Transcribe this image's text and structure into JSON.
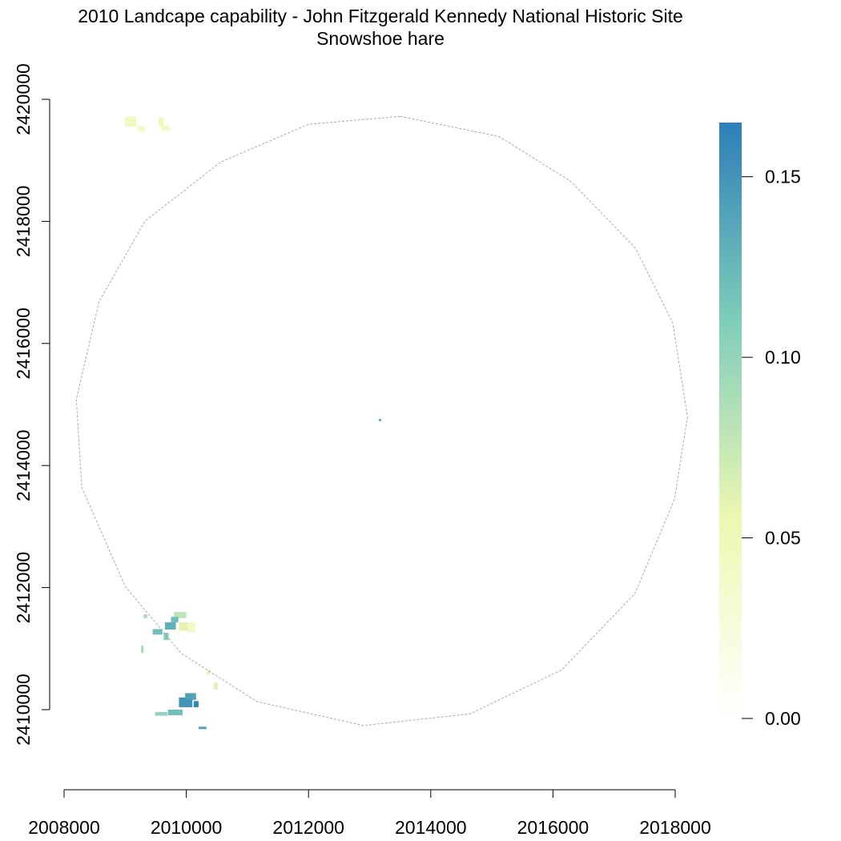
{
  "chart_data": {
    "type": "heatmap",
    "title": "2010 Landcape capability - John Fitzgerald Kennedy National Historic Site",
    "subtitle": "Snowshoe hare",
    "xlabel": "",
    "ylabel": "",
    "xlim": [
      2008000,
      2018000
    ],
    "ylim": [
      2410000,
      2420000
    ],
    "x_ticks": [
      2008000,
      2010000,
      2012000,
      2014000,
      2016000,
      2018000
    ],
    "x_tick_labels": [
      "2008000",
      "2010000",
      "2012000",
      "2014000",
      "2016000",
      "2018000"
    ],
    "y_ticks": [
      2410000,
      2412000,
      2414000,
      2416000,
      2418000,
      2420000
    ],
    "y_tick_labels": [
      "2410000",
      "2412000",
      "2414000",
      "2416000",
      "2418000",
      "2420000"
    ],
    "grid": false,
    "legend": {
      "position": "right",
      "range": [
        0,
        0.165
      ],
      "ticks": [
        0.0,
        0.05,
        0.1,
        0.15
      ],
      "tick_labels": [
        "0.00",
        "0.05",
        "0.10",
        "0.15"
      ],
      "colors": [
        "#ffffff",
        "#edf8b1",
        "#7fcdbb",
        "#2c7fb8"
      ]
    },
    "boundary_polygon": [
      [
        2013500,
        2419720
      ],
      [
        2015120,
        2419390
      ],
      [
        2016300,
        2418650
      ],
      [
        2017350,
        2417560
      ],
      [
        2017960,
        2416340
      ],
      [
        2018200,
        2414800
      ],
      [
        2017990,
        2413450
      ],
      [
        2017340,
        2411900
      ],
      [
        2016140,
        2410650
      ],
      [
        2014640,
        2409930
      ],
      [
        2012900,
        2409740
      ],
      [
        2011160,
        2410130
      ],
      [
        2009920,
        2410920
      ],
      [
        2009000,
        2412020
      ],
      [
        2008290,
        2413640
      ],
      [
        2008200,
        2415080
      ],
      [
        2008570,
        2416680
      ],
      [
        2009320,
        2418000
      ],
      [
        2010560,
        2418970
      ],
      [
        2012000,
        2419590
      ]
    ],
    "patches": [
      {
        "x": 2009000,
        "y": 2419720,
        "w": 180,
        "h": 170,
        "value": 0.045
      },
      {
        "x": 2009200,
        "y": 2419560,
        "w": 120,
        "h": 90,
        "value": 0.04
      },
      {
        "x": 2009550,
        "y": 2419700,
        "w": 80,
        "h": 140,
        "value": 0.05
      },
      {
        "x": 2009600,
        "y": 2419570,
        "w": 120,
        "h": 80,
        "value": 0.045
      },
      {
        "x": 2009800,
        "y": 2411600,
        "w": 200,
        "h": 100,
        "value": 0.08
      },
      {
        "x": 2009750,
        "y": 2411520,
        "w": 120,
        "h": 90,
        "value": 0.12
      },
      {
        "x": 2009650,
        "y": 2411430,
        "w": 180,
        "h": 120,
        "value": 0.13
      },
      {
        "x": 2009880,
        "y": 2411430,
        "w": 140,
        "h": 140,
        "value": 0.06
      },
      {
        "x": 2010020,
        "y": 2411430,
        "w": 130,
        "h": 160,
        "value": 0.04
      },
      {
        "x": 2009450,
        "y": 2411320,
        "w": 160,
        "h": 90,
        "value": 0.12
      },
      {
        "x": 2009630,
        "y": 2411260,
        "w": 80,
        "h": 120,
        "value": 0.11
      },
      {
        "x": 2009300,
        "y": 2411560,
        "w": 60,
        "h": 60,
        "value": 0.09
      },
      {
        "x": 2009260,
        "y": 2411050,
        "w": 40,
        "h": 120,
        "value": 0.09
      },
      {
        "x": 2010340,
        "y": 2410650,
        "w": 50,
        "h": 80,
        "value": 0.06
      },
      {
        "x": 2010450,
        "y": 2410440,
        "w": 70,
        "h": 110,
        "value": 0.06
      },
      {
        "x": 2009880,
        "y": 2410200,
        "w": 220,
        "h": 160,
        "value": 0.15
      },
      {
        "x": 2009980,
        "y": 2410270,
        "w": 180,
        "h": 110,
        "value": 0.14
      },
      {
        "x": 2010120,
        "y": 2410140,
        "w": 80,
        "h": 100,
        "value": 0.16
      },
      {
        "x": 2009700,
        "y": 2410000,
        "w": 240,
        "h": 90,
        "value": 0.12
      },
      {
        "x": 2009490,
        "y": 2409960,
        "w": 200,
        "h": 60,
        "value": 0.1
      },
      {
        "x": 2010200,
        "y": 2409720,
        "w": 130,
        "h": 40,
        "value": 0.14
      },
      {
        "x": 2013150,
        "y": 2414760,
        "w": 40,
        "h": 30,
        "value": 0.15
      }
    ]
  }
}
